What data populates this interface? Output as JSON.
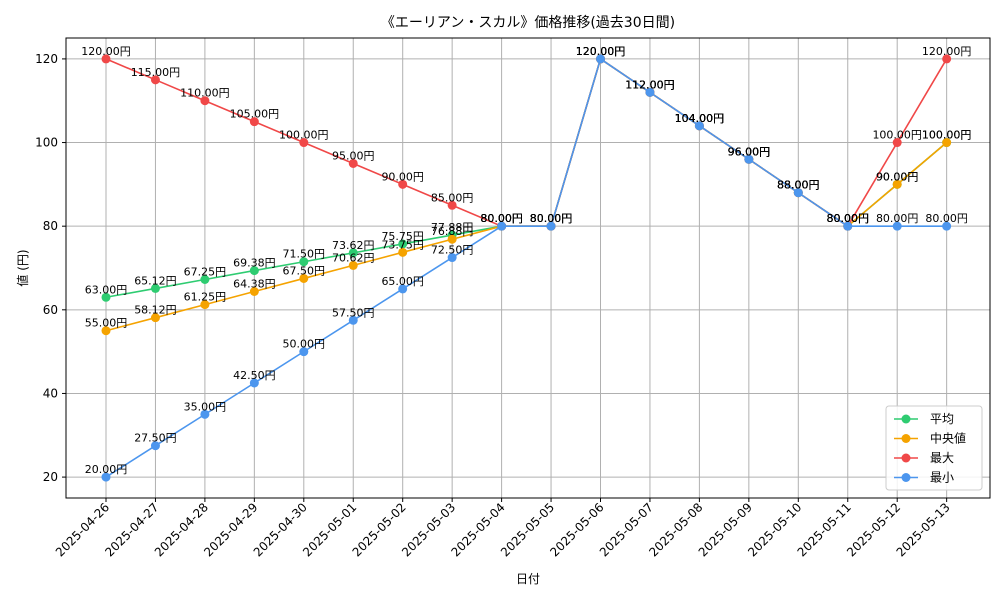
{
  "chart_data": {
    "type": "line",
    "title": "《エーリアン・スカル》価格推移(過去30日間)",
    "xlabel": "日付",
    "ylabel": "値 (円)",
    "ylim": [
      15,
      125
    ],
    "yticks": [
      20,
      40,
      60,
      80,
      100,
      120
    ],
    "grid": true,
    "legend_position": "bottom-right",
    "categories": [
      "2025-04-26",
      "2025-04-27",
      "2025-04-28",
      "2025-04-29",
      "2025-04-30",
      "2025-05-01",
      "2025-05-02",
      "2025-05-03",
      "2025-05-04",
      "2025-05-05",
      "2025-05-06",
      "2025-05-07",
      "2025-05-08",
      "2025-05-09",
      "2025-05-10",
      "2025-05-11",
      "2025-05-12",
      "2025-05-13"
    ],
    "series": [
      {
        "name": "平均",
        "color": "#2ecc71",
        "values": [
          63.0,
          65.12,
          67.25,
          69.38,
          71.5,
          73.62,
          75.75,
          77.88,
          80.0,
          80.0,
          120.0,
          112.0,
          104.0,
          96.0,
          88.0,
          80.0,
          90.0,
          100.0
        ],
        "labels": [
          "63.00円",
          "65.12円",
          "67.25円",
          "69.38円",
          "71.50円",
          "73.62円",
          "75.75円",
          "77.88円",
          "80.00円",
          "80.00円",
          "120.00円",
          "112.00円",
          "104.00円",
          "96.00円",
          "88.00円",
          "80.00円",
          "90.00円",
          "100.00円"
        ]
      },
      {
        "name": "中央値",
        "color": "#f5a300",
        "values": [
          55.0,
          58.12,
          61.25,
          64.38,
          67.5,
          70.62,
          73.75,
          76.88,
          80.0,
          80.0,
          120.0,
          112.0,
          104.0,
          96.0,
          88.0,
          80.0,
          90.0,
          100.0
        ],
        "labels": [
          "55.00円",
          "58.12円",
          "61.25円",
          "64.38円",
          "67.50円",
          "70.62円",
          "73.75円",
          "76.88円",
          "80.00円",
          "80.00円",
          "120.00円",
          "112.00円",
          "104.00円",
          "96.00円",
          "88.00円",
          "80.00円",
          "90.00円",
          "100.00円"
        ]
      },
      {
        "name": "最大",
        "color": "#f04848",
        "values": [
          120.0,
          115.0,
          110.0,
          105.0,
          100.0,
          95.0,
          90.0,
          85.0,
          80.0,
          80.0,
          120.0,
          112.0,
          104.0,
          96.0,
          88.0,
          80.0,
          100.0,
          120.0
        ],
        "labels": [
          "120.00円",
          "115.00円",
          "110.00円",
          "105.00円",
          "100.00円",
          "95.00円",
          "90.00円",
          "85.00円",
          "80.00円",
          "80.00円",
          "120.00円",
          "112.00円",
          "104.00円",
          "96.00円",
          "88.00円",
          "80.00円",
          "100.00円",
          "120.00円"
        ]
      },
      {
        "name": "最小",
        "color": "#4c96ee",
        "values": [
          20.0,
          27.5,
          35.0,
          42.5,
          50.0,
          57.5,
          65.0,
          72.5,
          80.0,
          80.0,
          120.0,
          112.0,
          104.0,
          96.0,
          88.0,
          80.0,
          80.0,
          80.0
        ],
        "labels": [
          "20.00円",
          "27.50円",
          "35.00円",
          "42.50円",
          "50.00円",
          "57.50円",
          "65.00円",
          "72.50円",
          "80.00円",
          "80.00円",
          "120.00円",
          "112.00円",
          "104.00円",
          "96.00円",
          "88.00円",
          "80.00円",
          "80.00円",
          "80.00円"
        ]
      }
    ]
  }
}
